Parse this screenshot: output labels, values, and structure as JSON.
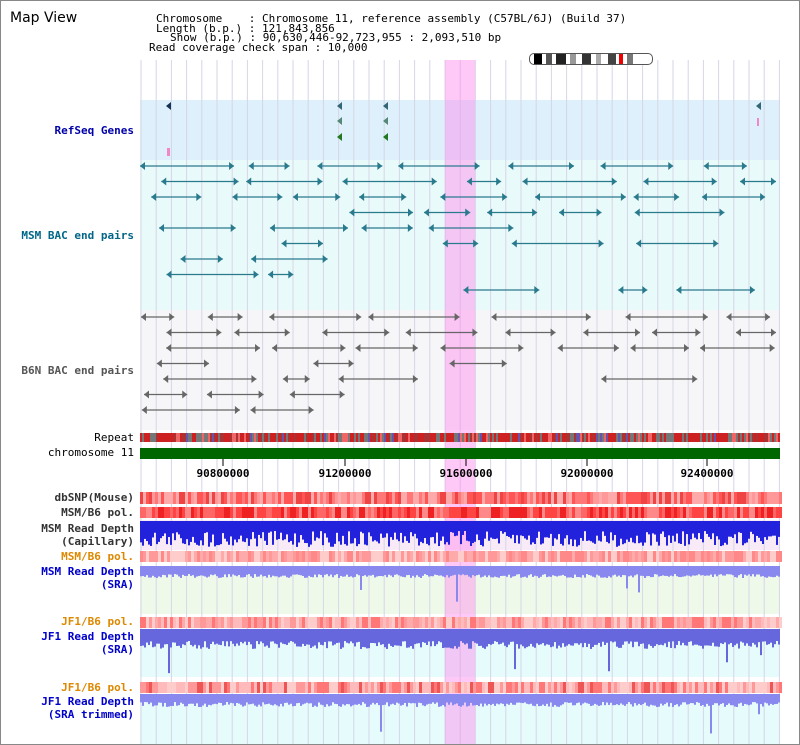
{
  "view_title": "Map View",
  "header": {
    "chromosome": "Chromosome    : Chromosome 11, reference assembly (C57BL/6J) (Build 37)",
    "length": "Length (b.p.) : 121,843,856",
    "show": "Show (b.p.) : 90,630,446-92,723,955 : 2,093,510 bp",
    "coverage": "Read coverage check span : 10,000"
  },
  "tracks": {
    "refseq": "RefSeq Genes",
    "msm_bac": "MSM BAC end pairs",
    "b6n_bac": "B6N BAC end pairs",
    "repeat": "Repeat",
    "chromosome": "chromosome 11",
    "dbsnp": "dbSNP(Mouse)",
    "msm_b6_pol_1": "MSM/B6 pol.",
    "msm_depth_cap_1": "MSM Read Depth",
    "msm_depth_cap_2": "(Capillary)",
    "msm_b6_pol_2": "MSM/B6 pol.",
    "msm_depth_sra_1": "MSM Read Depth",
    "msm_depth_sra_2": "(SRA)",
    "jf1_b6_pol_1": "JF1/B6 pol.",
    "jf1_depth_sra_1": "JF1 Read Depth",
    "jf1_depth_sra_2": "(SRA)",
    "jf1_b6_pol_2": "JF1/B6 pol.",
    "jf1_depth_trim_1": "JF1 Read Depth",
    "jf1_depth_trim_2": "(SRA trimmed)"
  },
  "axis_ticks": [
    "90800000",
    "91200000",
    "91600000",
    "92000000",
    "92400000"
  ],
  "colors": {
    "refseq_label": "#0000aa",
    "msm_label": "#006688",
    "orange_label": "#dd8800",
    "blue_label": "#0000cc",
    "chromosome_bar": "#006600",
    "highlight": "#ff88ee"
  }
}
